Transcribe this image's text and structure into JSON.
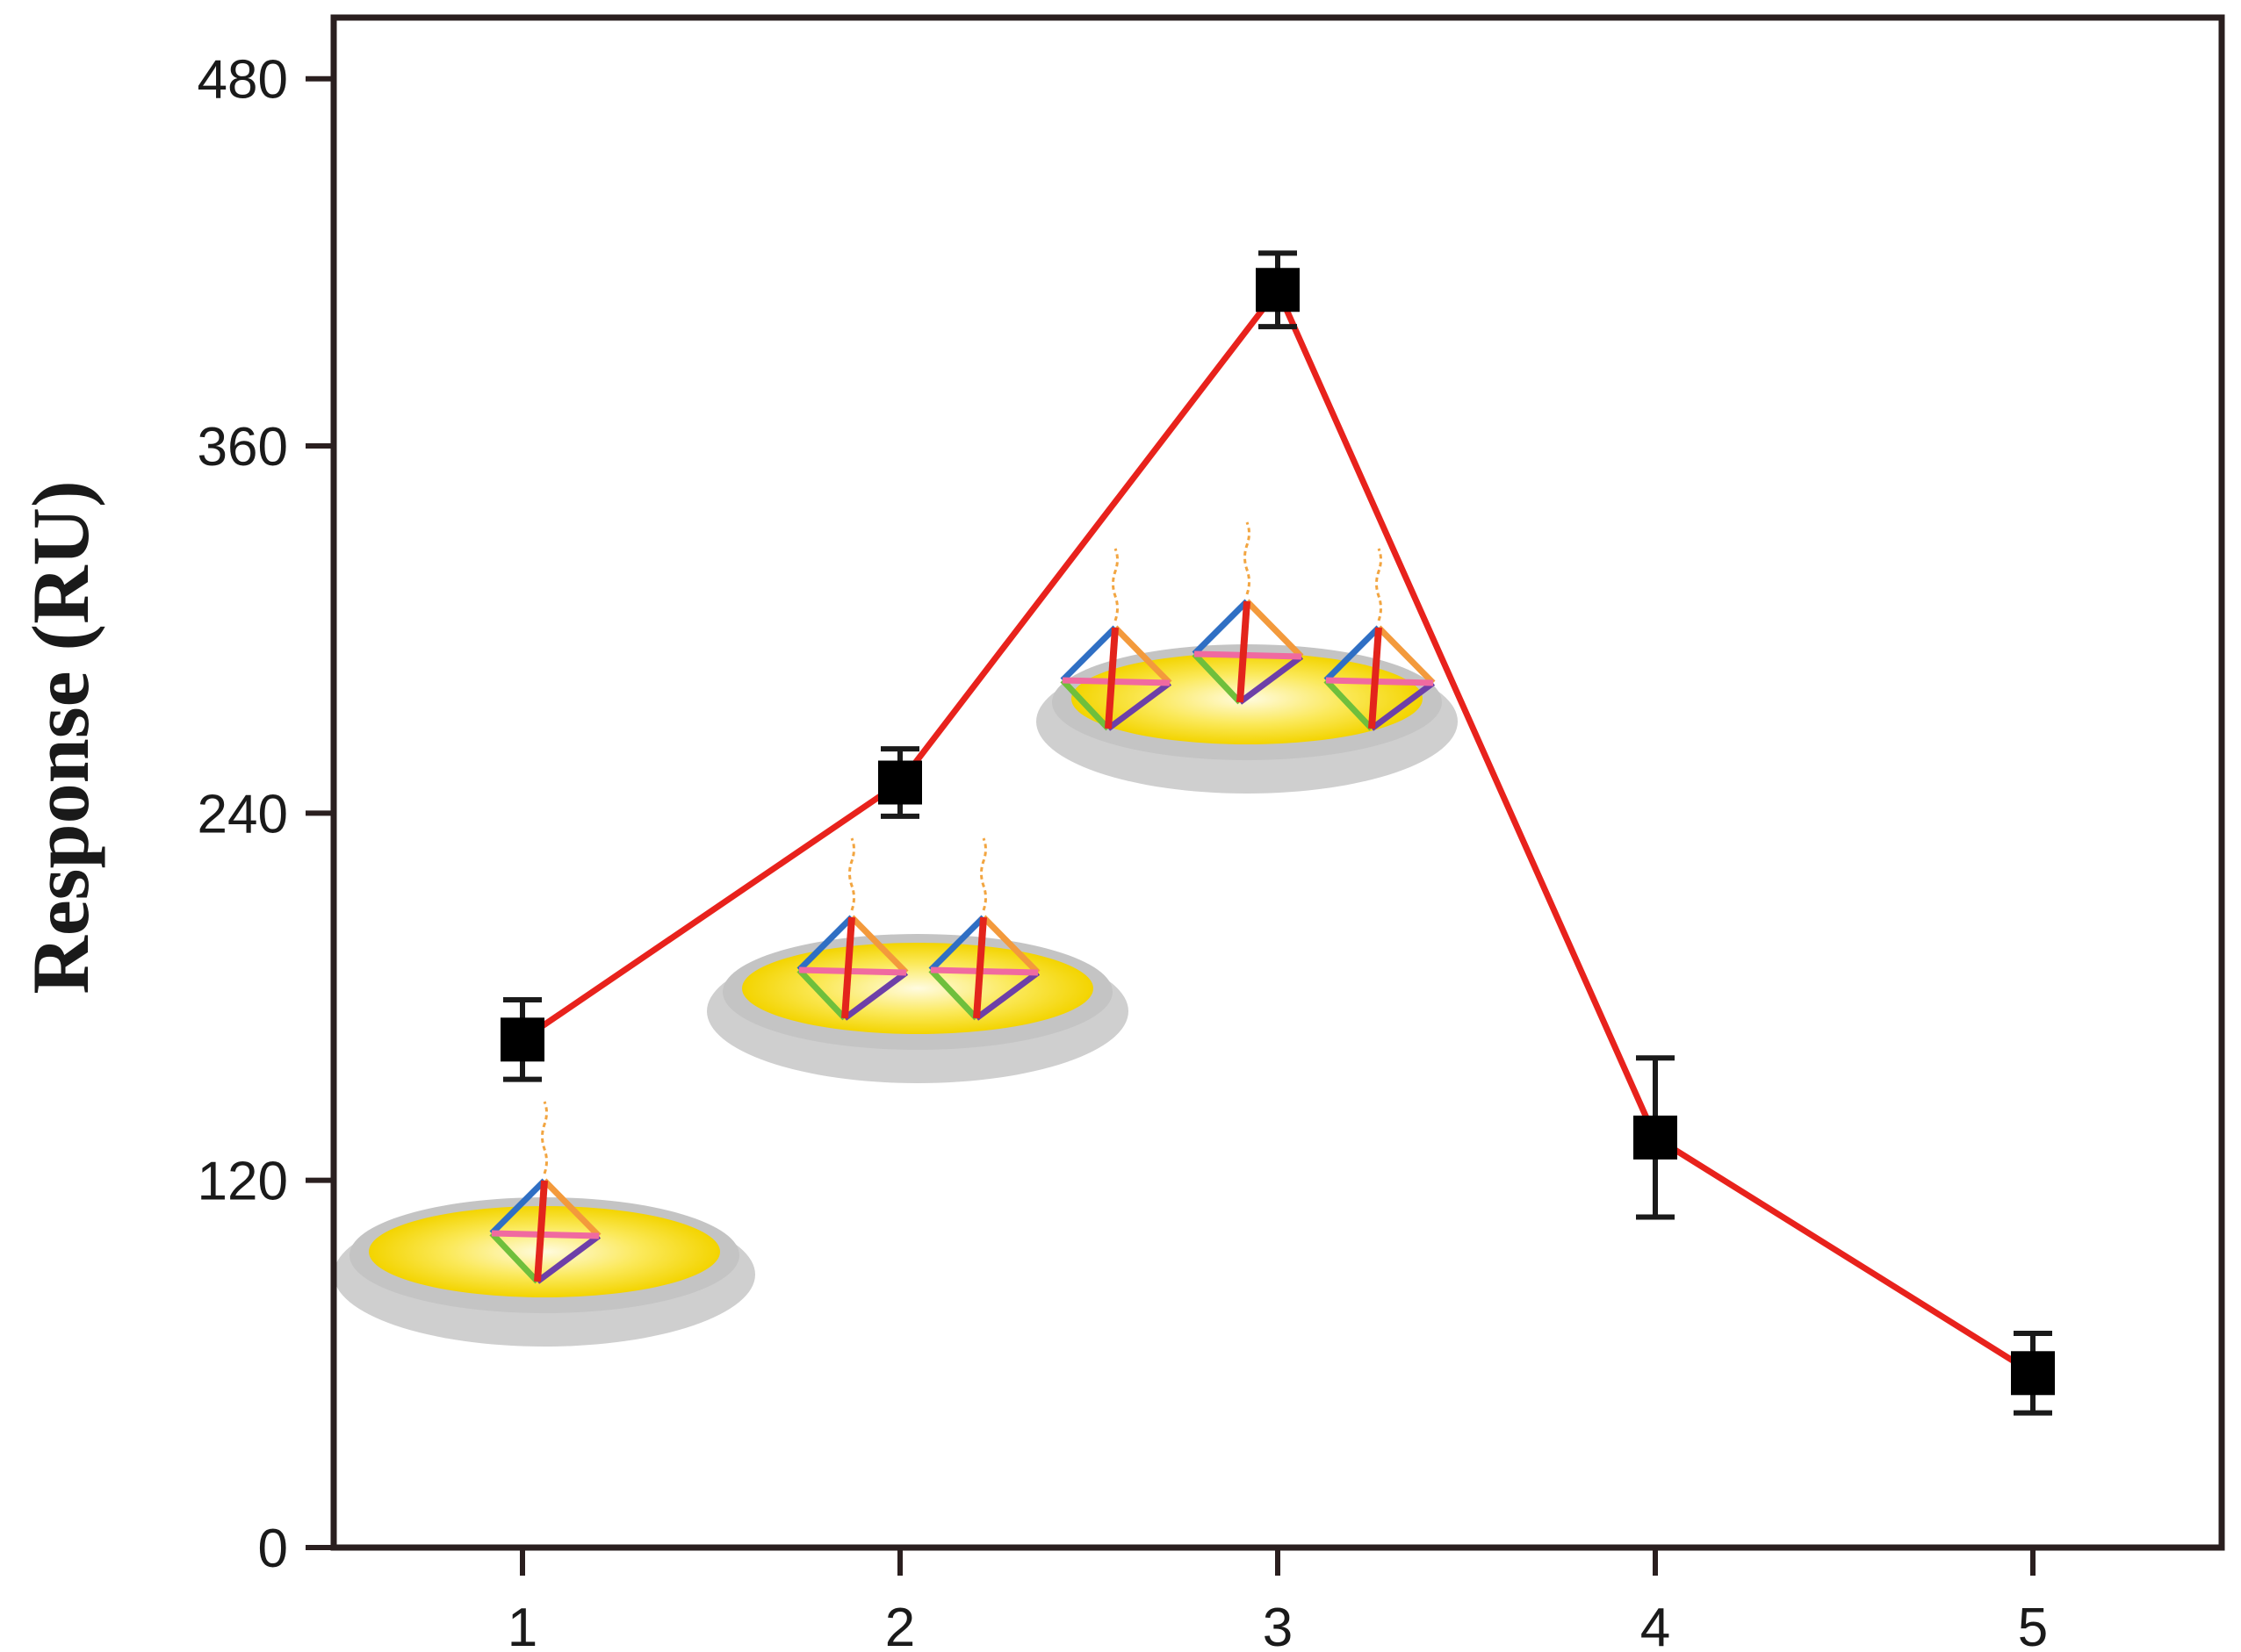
{
  "chart_data": {
    "type": "line",
    "title": "",
    "xlabel": "",
    "ylabel": "Response (RU)",
    "x": [
      1,
      2,
      3,
      4,
      5
    ],
    "x_ticks": [
      "1",
      "2",
      "3",
      "4",
      "5"
    ],
    "y_ticks": [
      "0",
      "120",
      "240",
      "360",
      "480"
    ],
    "xlim": [
      0.5,
      5.5
    ],
    "ylim": [
      0,
      500
    ],
    "grid": false,
    "legend": "none",
    "series": [
      {
        "values": [
          166,
          250,
          411,
          134,
          57
        ],
        "error": [
          13,
          11,
          12,
          26,
          13
        ],
        "line_color": "#e8221c",
        "marker": "square",
        "marker_color": "#000000"
      }
    ],
    "insets": [
      {
        "near_x": 1,
        "depicts": "gold surface with one DNA tetrahedron",
        "count": 1
      },
      {
        "near_x": 2,
        "depicts": "gold surface with two DNA tetrahedra",
        "count": 2
      },
      {
        "near_x": 3,
        "depicts": "gold surface with three DNA tetrahedra",
        "count": 3
      }
    ]
  }
}
